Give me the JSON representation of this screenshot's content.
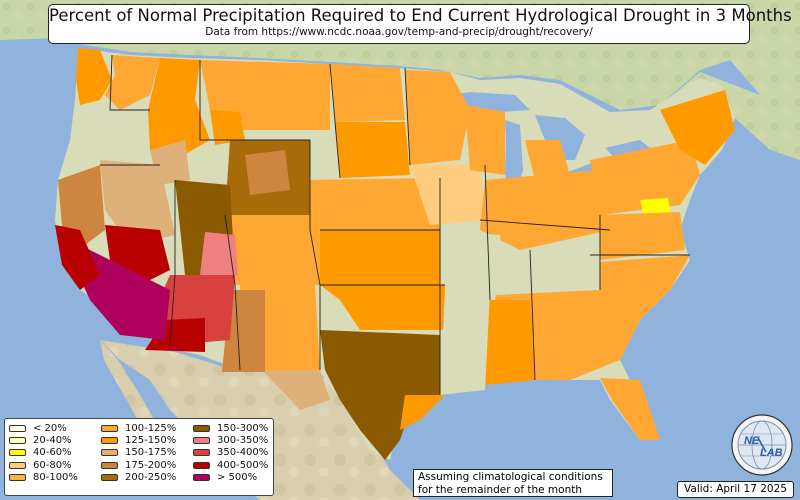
{
  "title": "Percent of Normal Precipitation Required to End Current Hydrological Drought in 3 Months",
  "subtitle": "Data from https://www.ncdc.noaa.gov/temp-and-precip/drought/recovery/",
  "legend": {
    "items": [
      {
        "label": "< 20%",
        "color": "#ffffe5"
      },
      {
        "label": "20-40%",
        "color": "#ffffb2"
      },
      {
        "label": "40-60%",
        "color": "#ffff00"
      },
      {
        "label": "60-80%",
        "color": "#ffcc80"
      },
      {
        "label": "80-100%",
        "color": "#ffb347"
      },
      {
        "label": "100-125%",
        "color": "#ffa733"
      },
      {
        "label": "125-150%",
        "color": "#ff9900"
      },
      {
        "label": "150-175%",
        "color": "#deb07a"
      },
      {
        "label": "175-200%",
        "color": "#cd853f"
      },
      {
        "label": "200-250%",
        "color": "#a86b0a"
      },
      {
        "label": "150-300%",
        "color": "#8b5a00"
      },
      {
        "label": "300-350%",
        "color": "#f08080"
      },
      {
        "label": "350-400%",
        "color": "#d94040"
      },
      {
        "label": "400-500%",
        "color": "#b80000"
      },
      {
        "label": "> 500%",
        "color": "#b0005e"
      }
    ]
  },
  "note": {
    "line1": "Assuming climatological conditions",
    "line2": "for the remainder of the month"
  },
  "valid": "Valid: April 17 2025",
  "logo": {
    "text1": "NE",
    "text2": "LAB",
    "icon": "globe-icon"
  }
}
